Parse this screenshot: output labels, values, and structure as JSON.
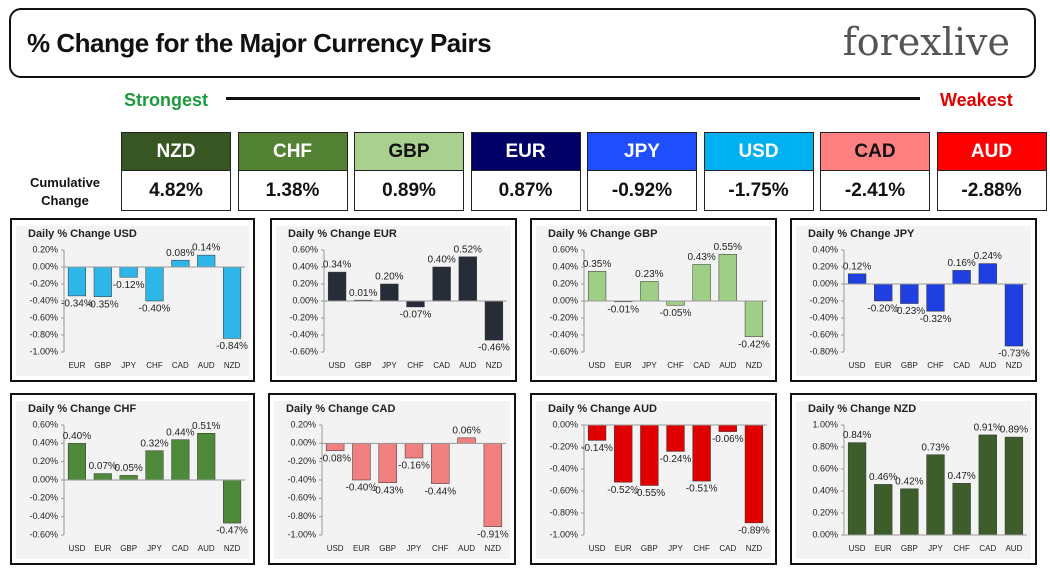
{
  "header": {
    "title": "% Change for the Major Currency Pairs",
    "logo": "forexlive"
  },
  "ranking": {
    "strongest": "Strongest",
    "weakest": "Weakest",
    "row_label": "Cumulative Change",
    "currencies": [
      {
        "name": "NZD",
        "color": "#375623",
        "value": "4.82%"
      },
      {
        "name": "CHF",
        "color": "#548235",
        "value": "1.38%"
      },
      {
        "name": "GBP",
        "color": "#a9d08e",
        "value": "0.89%"
      },
      {
        "name": "EUR",
        "color": "#000066",
        "value": "0.87%"
      },
      {
        "name": "JPY",
        "color": "#1f4eff",
        "value": "-0.92%"
      },
      {
        "name": "USD",
        "color": "#00b0f0",
        "value": "-1.75%"
      },
      {
        "name": "CAD",
        "color": "#ff8080",
        "value": "-2.41%"
      },
      {
        "name": "AUD",
        "color": "#ff0000",
        "value": "-2.88%"
      }
    ]
  },
  "chart_data": [
    {
      "type": "bar",
      "title": "Daily % Change USD",
      "color": "#2fb6e8",
      "categories": [
        "EUR",
        "GBP",
        "JPY",
        "CHF",
        "CAD",
        "AUD",
        "NZD"
      ],
      "values": [
        -0.34,
        -0.35,
        -0.12,
        -0.4,
        0.08,
        0.14,
        -0.84
      ],
      "value_labels": [
        "-0.34%",
        "-0.35%",
        "-0.12%",
        "-0.40%",
        "0.08%",
        "0.14%",
        "-0.84%"
      ],
      "ylim": [
        -1.0,
        0.2
      ],
      "yticks": [
        {
          "value": 0.2,
          "label": "0.20%"
        },
        {
          "value": 0,
          "label": "0.00%"
        },
        {
          "value": -0.2,
          "label": "-0.20%"
        },
        {
          "value": -0.4,
          "label": "-0.40%"
        },
        {
          "value": -0.6,
          "label": "-0.60%"
        },
        {
          "value": -0.8,
          "label": "-0.80%"
        },
        {
          "value": -1.0,
          "label": "-1.00%"
        }
      ]
    },
    {
      "type": "bar",
      "title": "Daily % Change EUR",
      "color": "#262d38",
      "categories": [
        "USD",
        "GBP",
        "JPY",
        "CHF",
        "CAD",
        "AUD",
        "NZD"
      ],
      "values": [
        0.34,
        0.01,
        0.2,
        -0.07,
        0.4,
        0.52,
        -0.46
      ],
      "value_labels": [
        "0.34%",
        "0.01%",
        "0.20%",
        "-0.07%",
        "0.40%",
        "0.52%",
        "-0.46%"
      ],
      "ylim": [
        -0.6,
        0.6
      ],
      "yticks": [
        {
          "value": 0.6,
          "label": "0.60%"
        },
        {
          "value": 0.4,
          "label": "0.40%"
        },
        {
          "value": 0.2,
          "label": "0.20%"
        },
        {
          "value": 0,
          "label": "0.00%"
        },
        {
          "value": -0.2,
          "label": "-0.20%"
        },
        {
          "value": -0.4,
          "label": "-0.40%"
        },
        {
          "value": -0.6,
          "label": "-0.60%"
        }
      ]
    },
    {
      "type": "bar",
      "title": "Daily % Change GBP",
      "color": "#9fcf86",
      "categories": [
        "USD",
        "EUR",
        "JPY",
        "CHF",
        "CAD",
        "AUD",
        "NZD"
      ],
      "values": [
        0.35,
        -0.01,
        0.23,
        -0.05,
        0.43,
        0.55,
        -0.42
      ],
      "value_labels": [
        "0.35%",
        "-0.01%",
        "0.23%",
        "-0.05%",
        "0.43%",
        "0.55%",
        "-0.42%"
      ],
      "ylim": [
        -0.6,
        0.6
      ],
      "yticks": [
        {
          "value": 0.6,
          "label": "0.60%"
        },
        {
          "value": 0.4,
          "label": "0.40%"
        },
        {
          "value": 0.2,
          "label": "0.20%"
        },
        {
          "value": 0,
          "label": "0.00%"
        },
        {
          "value": -0.2,
          "label": "-0.20%"
        },
        {
          "value": -0.4,
          "label": "-0.40%"
        },
        {
          "value": -0.6,
          "label": "-0.60%"
        }
      ]
    },
    {
      "type": "bar",
      "title": "Daily % Change JPY",
      "color": "#1f3fe0",
      "categories": [
        "USD",
        "EUR",
        "GBP",
        "CHF",
        "CAD",
        "AUD",
        "NZD"
      ],
      "values": [
        0.12,
        -0.2,
        -0.23,
        -0.32,
        0.16,
        0.24,
        -0.73
      ],
      "value_labels": [
        "0.12%",
        "-0.20%",
        "-0.23%",
        "-0.32%",
        "0.16%",
        "0.24%",
        "-0.73%"
      ],
      "ylim": [
        -0.8,
        0.4
      ],
      "yticks": [
        {
          "value": 0.4,
          "label": "0.40%"
        },
        {
          "value": 0.2,
          "label": "0.20%"
        },
        {
          "value": 0,
          "label": "0.00%"
        },
        {
          "value": -0.2,
          "label": "-0.20%"
        },
        {
          "value": -0.4,
          "label": "-0.40%"
        },
        {
          "value": -0.6,
          "label": "-0.60%"
        },
        {
          "value": -0.8,
          "label": "-0.80%"
        }
      ]
    },
    {
      "type": "bar",
      "title": "Daily % Change CHF",
      "color": "#4e8a3a",
      "categories": [
        "USD",
        "EUR",
        "GBP",
        "JPY",
        "CAD",
        "AUD",
        "NZD"
      ],
      "values": [
        0.4,
        0.07,
        0.05,
        0.32,
        0.44,
        0.51,
        -0.47
      ],
      "value_labels": [
        "0.40%",
        "0.07%",
        "0.05%",
        "0.32%",
        "0.44%",
        "0.51%",
        "-0.47%"
      ],
      "ylim": [
        -0.6,
        0.6
      ],
      "yticks": [
        {
          "value": 0.6,
          "label": "0.60%"
        },
        {
          "value": 0.4,
          "label": "0.40%"
        },
        {
          "value": 0.2,
          "label": "0.20%"
        },
        {
          "value": 0,
          "label": "0.00%"
        },
        {
          "value": -0.2,
          "label": "-0.20%"
        },
        {
          "value": -0.4,
          "label": "-0.40%"
        },
        {
          "value": -0.6,
          "label": "-0.60%"
        }
      ]
    },
    {
      "type": "bar",
      "title": "Daily % Change CAD",
      "color": "#f08080",
      "categories": [
        "USD",
        "EUR",
        "GBP",
        "JPY",
        "CHF",
        "AUD",
        "NZD"
      ],
      "values": [
        -0.08,
        -0.4,
        -0.43,
        -0.16,
        -0.44,
        0.06,
        -0.91
      ],
      "value_labels": [
        "-0.08%",
        "-0.40%",
        "-0.43%",
        "-0.16%",
        "-0.44%",
        "0.06%",
        "-0.91%"
      ],
      "ylim": [
        -1.0,
        0.2
      ],
      "yticks": [
        {
          "value": 0.2,
          "label": "0.20%"
        },
        {
          "value": 0,
          "label": "0.00%"
        },
        {
          "value": -0.2,
          "label": "-0.20%"
        },
        {
          "value": -0.4,
          "label": "-0.40%"
        },
        {
          "value": -0.6,
          "label": "-0.60%"
        },
        {
          "value": -0.8,
          "label": "-0.80%"
        },
        {
          "value": -1.0,
          "label": "-1.00%"
        }
      ]
    },
    {
      "type": "bar",
      "title": "Daily % Change AUD",
      "color": "#e00000",
      "categories": [
        "USD",
        "EUR",
        "GBP",
        "JPY",
        "CHF",
        "CAD",
        "NZD"
      ],
      "values": [
        -0.14,
        -0.52,
        -0.55,
        -0.24,
        -0.51,
        -0.06,
        -0.89
      ],
      "value_labels": [
        "-0.14%",
        "-0.52%",
        "-0.55%",
        "-0.24%",
        "-0.51%",
        "-0.06%",
        "-0.89%"
      ],
      "ylim": [
        -1.0,
        0.0
      ],
      "yticks": [
        {
          "value": 0,
          "label": "0.00%"
        },
        {
          "value": -0.2,
          "label": "-0.20%"
        },
        {
          "value": -0.4,
          "label": "-0.40%"
        },
        {
          "value": -0.6,
          "label": "-0.60%"
        },
        {
          "value": -0.8,
          "label": "-0.80%"
        },
        {
          "value": -1.0,
          "label": "-1.00%"
        }
      ]
    },
    {
      "type": "bar",
      "title": "Daily % Change NZD",
      "color": "#3d5e2a",
      "categories": [
        "USD",
        "EUR",
        "GBP",
        "JPY",
        "CHF",
        "CAD",
        "AUD"
      ],
      "values": [
        0.84,
        0.46,
        0.42,
        0.73,
        0.47,
        0.91,
        0.89
      ],
      "value_labels": [
        "0.84%",
        "0.46%",
        "0.42%",
        "0.73%",
        "0.47%",
        "0.91%",
        "0.89%"
      ],
      "ylim": [
        0.0,
        1.0
      ],
      "yticks": [
        {
          "value": 1.0,
          "label": "1.00%"
        },
        {
          "value": 0.8,
          "label": "0.80%"
        },
        {
          "value": 0.6,
          "label": "0.60%"
        },
        {
          "value": 0.4,
          "label": "0.40%"
        },
        {
          "value": 0.2,
          "label": "0.20%"
        },
        {
          "value": 0,
          "label": "0.00%"
        }
      ]
    }
  ]
}
